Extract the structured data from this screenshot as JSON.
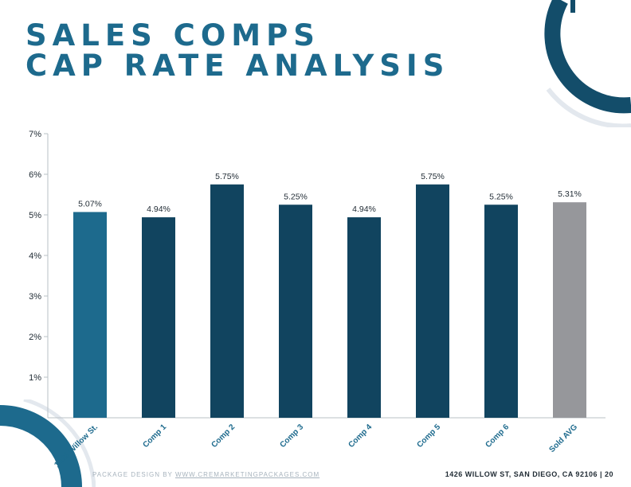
{
  "title": {
    "line1": "SALES COMPS",
    "line2": "CAP RATE ANALYSIS"
  },
  "footer": {
    "left_prefix": "PACKAGE DESIGN BY",
    "left_link": "WWW.CREMARKETINGPACKAGES.COM",
    "right": "1426 WILLOW ST, SAN DIEGO, CA 92106 | 20"
  },
  "colors": {
    "title": "#1d6a8d",
    "subject_bar": "#1d6a8d",
    "comp_bar": "#11445f",
    "avg_bar": "#96979b",
    "arc_dark": "#134d6a",
    "arc_light": "#e3e8ee"
  },
  "chart_data": {
    "type": "bar",
    "categories": [
      "1426 Willow St.",
      "Comp 1",
      "Comp 2",
      "Comp 3",
      "Comp 4",
      "Comp 5",
      "Comp 6",
      "Sold AVG"
    ],
    "values": [
      5.07,
      4.94,
      5.75,
      5.25,
      4.94,
      5.75,
      5.25,
      5.31
    ],
    "value_labels": [
      "5.07%",
      "4.94%",
      "5.75%",
      "5.25%",
      "4.94%",
      "5.75%",
      "5.25%",
      "5.31%"
    ],
    "bar_colors": [
      "#1d6a8d",
      "#11445f",
      "#11445f",
      "#11445f",
      "#11445f",
      "#11445f",
      "#11445f",
      "#96979b"
    ],
    "y_ticks": [
      "1%",
      "2%",
      "3%",
      "4%",
      "5%",
      "6%",
      "7%"
    ],
    "y_tick_values": [
      1,
      2,
      3,
      4,
      5,
      6,
      7
    ],
    "ylim": [
      0,
      7
    ],
    "title": "",
    "xlabel": "",
    "ylabel": "",
    "grid": false,
    "legend": "none"
  }
}
